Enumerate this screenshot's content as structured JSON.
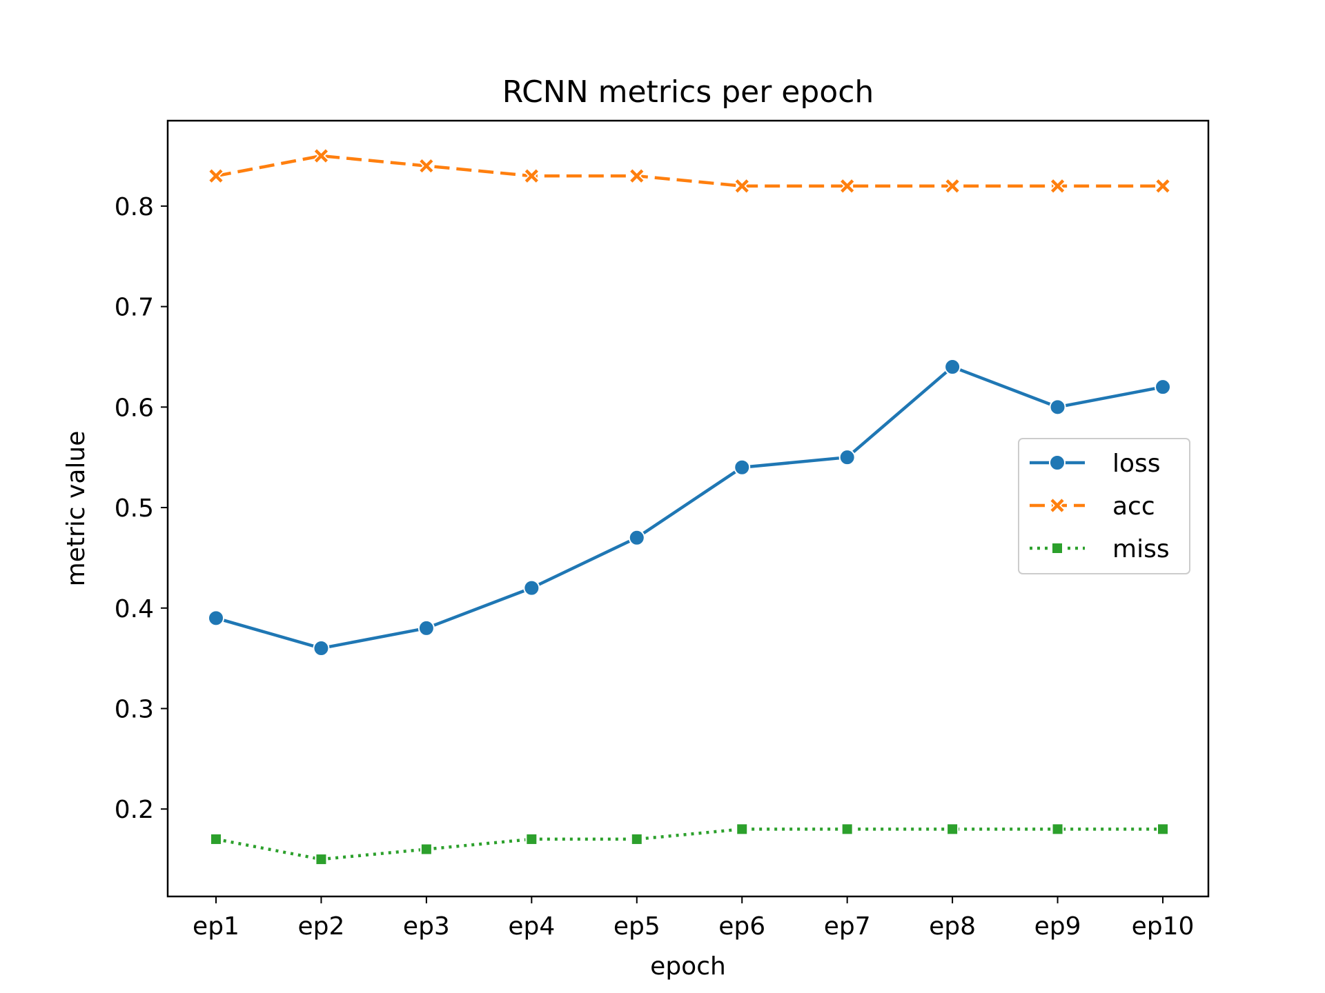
{
  "chart_data": {
    "type": "line",
    "title": "RCNN metrics per epoch",
    "xlabel": "epoch",
    "ylabel": "metric value",
    "categories": [
      "ep1",
      "ep2",
      "ep3",
      "ep4",
      "ep5",
      "ep6",
      "ep7",
      "ep8",
      "ep9",
      "ep10"
    ],
    "ylim": [
      0.113,
      0.885
    ],
    "yticks": [
      0.2,
      0.3,
      0.4,
      0.5,
      0.6,
      0.7,
      0.8
    ],
    "grid": false,
    "legend_position": "center-right",
    "series": [
      {
        "name": "loss",
        "color": "#1f77b4",
        "line_style": "solid",
        "marker": "circle",
        "values": [
          0.39,
          0.36,
          0.38,
          0.42,
          0.47,
          0.54,
          0.55,
          0.64,
          0.6,
          0.62
        ]
      },
      {
        "name": "acc",
        "color": "#ff7f0e",
        "line_style": "dashed",
        "marker": "x",
        "values": [
          0.83,
          0.85,
          0.84,
          0.83,
          0.83,
          0.82,
          0.82,
          0.82,
          0.82,
          0.82
        ]
      },
      {
        "name": "miss",
        "color": "#2ca02c",
        "line_style": "dotted",
        "marker": "square",
        "values": [
          0.17,
          0.15,
          0.16,
          0.17,
          0.17,
          0.18,
          0.18,
          0.18,
          0.18,
          0.18
        ]
      }
    ]
  }
}
